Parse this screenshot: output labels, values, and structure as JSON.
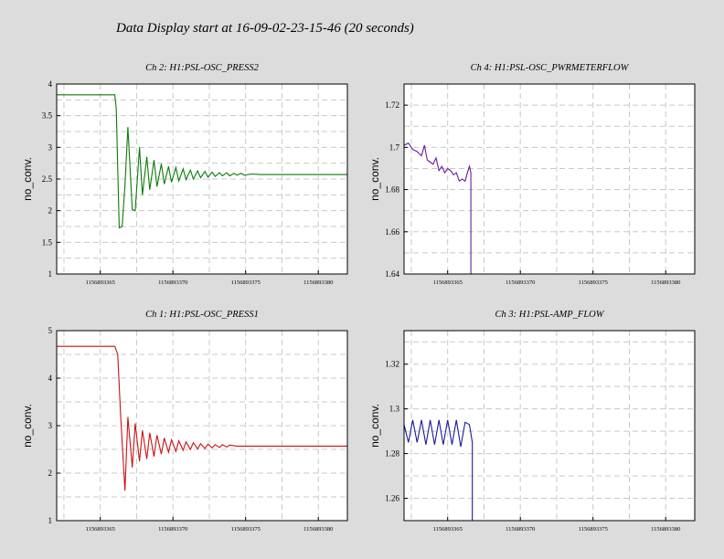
{
  "page": {
    "title": "Data Display start at 16-09-02-23-15-46 (20 seconds)"
  },
  "chart_data": [
    {
      "id": "ch2",
      "type": "line",
      "title": "Ch 2: H1:PSL-OSC_PRESS2",
      "ylabel": "no_conv.",
      "xlabel": "",
      "xlim": [
        1156893362,
        1156893382
      ],
      "ylim": [
        1,
        4
      ],
      "yticks": [
        1,
        1.5,
        2,
        2.5,
        3,
        3.5,
        4
      ],
      "ytick_labels": [
        "1",
        "1.5",
        "2",
        "2.5",
        "3",
        "3.5",
        "4"
      ],
      "xticks": [
        1156893365,
        1156893370,
        1156893375,
        1156893380
      ],
      "xtick_labels": [
        "1156893365",
        "1156893370",
        "1156893375",
        "1156893380"
      ],
      "grid": true,
      "color": "#0a7a0a",
      "series": [
        {
          "x": [
            1156893362.0,
            1156893366.0,
            1156893366.1,
            1156893366.3,
            1156893366.5,
            1156893366.7,
            1156893366.9,
            1156893367.2,
            1156893367.4,
            1156893367.7,
            1156893367.9,
            1156893368.2,
            1156893368.4,
            1156893368.7,
            1156893368.9,
            1156893369.2,
            1156893369.4,
            1156893369.7,
            1156893369.9,
            1156893370.2,
            1156893370.4,
            1156893370.7,
            1156893370.9,
            1156893371.2,
            1156893371.4,
            1156893371.7,
            1156893371.9,
            1156893372.2,
            1156893372.4,
            1156893372.7,
            1156893372.9,
            1156893373.2,
            1156893373.4,
            1156893373.7,
            1156893373.9,
            1156893374.2,
            1156893374.4,
            1156893374.7,
            1156893374.9,
            1156893375.4,
            1156893376.0,
            1156893378.0,
            1156893382.0
          ],
          "y": [
            3.83,
            3.83,
            3.6,
            1.73,
            1.75,
            2.4,
            3.32,
            2.02,
            2.0,
            3.0,
            2.25,
            2.85,
            2.33,
            2.8,
            2.38,
            2.74,
            2.42,
            2.7,
            2.45,
            2.68,
            2.47,
            2.66,
            2.49,
            2.64,
            2.5,
            2.63,
            2.52,
            2.62,
            2.53,
            2.61,
            2.54,
            2.6,
            2.55,
            2.6,
            2.55,
            2.59,
            2.56,
            2.59,
            2.56,
            2.58,
            2.57,
            2.57,
            2.57
          ]
        }
      ]
    },
    {
      "id": "ch4",
      "type": "line",
      "title": "Ch 4: H1:PSL-OSC_PWRMETERFLOW",
      "ylabel": "no_conv.",
      "xlabel": "",
      "xlim": [
        1156893362,
        1156893382
      ],
      "ylim": [
        1.64,
        1.73
      ],
      "yticks": [
        1.64,
        1.66,
        1.68,
        1.7,
        1.72
      ],
      "ytick_labels": [
        "1.64",
        "1.66",
        "1.68",
        "1.7",
        "1.72"
      ],
      "xticks": [
        1156893365,
        1156893370,
        1156893375,
        1156893380
      ],
      "xtick_labels": [
        "1156893365",
        "1156893370",
        "1156893375",
        "1156893380"
      ],
      "grid": true,
      "color": "#6a1a9a",
      "series": [
        {
          "x": [
            1156893362.0,
            1156893362.3,
            1156893362.6,
            1156893362.9,
            1156893363.2,
            1156893363.4,
            1156893363.6,
            1156893363.8,
            1156893364.0,
            1156893364.2,
            1156893364.4,
            1156893364.6,
            1156893364.8,
            1156893365.0,
            1156893365.2,
            1156893365.4,
            1156893365.6,
            1156893365.8,
            1156893366.0,
            1156893366.2,
            1156893366.4,
            1156893366.5,
            1156893366.6,
            1156893366.6
          ],
          "y": [
            1.701,
            1.702,
            1.699,
            1.698,
            1.696,
            1.701,
            1.694,
            1.693,
            1.692,
            1.695,
            1.689,
            1.691,
            1.688,
            1.69,
            1.689,
            1.687,
            1.688,
            1.684,
            1.685,
            1.684,
            1.689,
            1.691,
            1.688,
            1.63
          ]
        }
      ]
    },
    {
      "id": "ch1",
      "type": "line",
      "title": "Ch 1: H1:PSL-OSC_PRESS1",
      "ylabel": "no_conv.",
      "xlabel": "",
      "xlim": [
        1156893362,
        1156893382
      ],
      "ylim": [
        1,
        5
      ],
      "yticks": [
        1,
        2,
        3,
        4,
        5
      ],
      "ytick_labels": [
        "1",
        "2",
        "3",
        "4",
        "5"
      ],
      "xticks": [
        1156893365,
        1156893370,
        1156893375,
        1156893380
      ],
      "xtick_labels": [
        "1156893365",
        "1156893370",
        "1156893375",
        "1156893380"
      ],
      "grid": true,
      "color": "#cc1111",
      "series": [
        {
          "x": [
            1156893362.0,
            1156893366.0,
            1156893366.2,
            1156893366.4,
            1156893366.7,
            1156893366.9,
            1156893367.2,
            1156893367.4,
            1156893367.7,
            1156893367.9,
            1156893368.2,
            1156893368.4,
            1156893368.7,
            1156893368.9,
            1156893369.2,
            1156893369.4,
            1156893369.7,
            1156893369.9,
            1156893370.2,
            1156893370.4,
            1156893370.7,
            1156893370.9,
            1156893371.2,
            1156893371.4,
            1156893371.7,
            1156893371.9,
            1156893372.2,
            1156893372.4,
            1156893372.7,
            1156893372.9,
            1156893373.2,
            1156893373.4,
            1156893373.7,
            1156893373.9,
            1156893374.4,
            1156893375.0,
            1156893377.0,
            1156893382.0
          ],
          "y": [
            4.67,
            4.67,
            4.5,
            3.2,
            1.63,
            3.18,
            2.12,
            3.05,
            2.25,
            2.9,
            2.3,
            2.85,
            2.35,
            2.8,
            2.4,
            2.74,
            2.44,
            2.7,
            2.46,
            2.68,
            2.48,
            2.66,
            2.5,
            2.64,
            2.51,
            2.62,
            2.52,
            2.61,
            2.53,
            2.6,
            2.54,
            2.6,
            2.55,
            2.59,
            2.57,
            2.57,
            2.57,
            2.57
          ]
        }
      ]
    },
    {
      "id": "ch3",
      "type": "line",
      "title": "Ch 3: H1:PSL-AMP_FLOW",
      "ylabel": "no_conv.",
      "xlabel": "",
      "xlim": [
        1156893362,
        1156893382
      ],
      "ylim": [
        1.25,
        1.335
      ],
      "yticks": [
        1.26,
        1.28,
        1.3,
        1.32
      ],
      "ytick_labels": [
        "1.26",
        "1.28",
        "1.3",
        "1.32"
      ],
      "xticks": [
        1156893365,
        1156893370,
        1156893375,
        1156893380
      ],
      "xtick_labels": [
        "1156893365",
        "1156893370",
        "1156893375",
        "1156893380"
      ],
      "grid": true,
      "color": "#1a1a9a",
      "series": [
        {
          "x": [
            1156893362.0,
            1156893362.3,
            1156893362.6,
            1156893362.9,
            1156893363.2,
            1156893363.5,
            1156893363.8,
            1156893364.1,
            1156893364.4,
            1156893364.7,
            1156893365.0,
            1156893365.3,
            1156893365.6,
            1156893365.9,
            1156893366.2,
            1156893366.5,
            1156893366.7,
            1156893366.7
          ],
          "y": [
            1.293,
            1.285,
            1.295,
            1.285,
            1.295,
            1.284,
            1.295,
            1.284,
            1.295,
            1.284,
            1.295,
            1.284,
            1.295,
            1.283,
            1.294,
            1.293,
            1.285,
            1.24
          ]
        }
      ]
    }
  ]
}
